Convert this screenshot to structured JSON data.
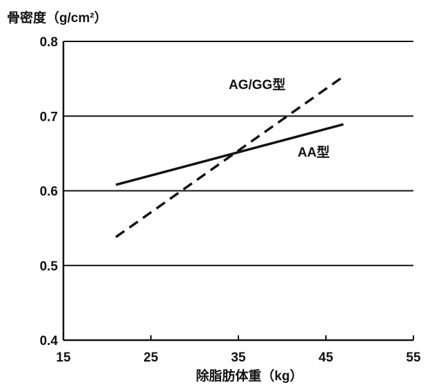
{
  "chart_data": {
    "type": "line",
    "title": "",
    "ylabel": "骨密度（g/cm²）",
    "xlabel": "除脂肪体重（kg）",
    "xlim": [
      15,
      55
    ],
    "ylim": [
      0.4,
      0.8
    ],
    "x_ticks": [
      "15",
      "25",
      "35",
      "45",
      "55"
    ],
    "y_ticks": [
      "0.4",
      "0.5",
      "0.6",
      "0.7",
      "0.8"
    ],
    "grid": "horizontal",
    "series": [
      {
        "name": "AA型",
        "style": "solid",
        "x": [
          21,
          47
        ],
        "y": [
          0.608,
          0.689
        ]
      },
      {
        "name": "AG/GG型",
        "style": "dashed",
        "x": [
          21,
          47
        ],
        "y": [
          0.538,
          0.753
        ]
      }
    ],
    "colors": {
      "line": "#111111",
      "background": "#ffffff"
    }
  }
}
